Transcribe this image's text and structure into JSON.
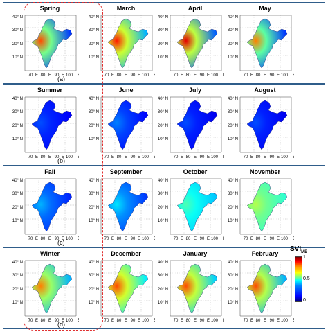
{
  "figure": {
    "panels": [
      {
        "letter": "(a)",
        "titles": [
          "Spring",
          "March",
          "April",
          "May"
        ]
      },
      {
        "letter": "(b)",
        "titles": [
          "Summer",
          "June",
          "July",
          "August"
        ]
      },
      {
        "letter": "(c)",
        "titles": [
          "Fall",
          "September",
          "October",
          "November"
        ]
      },
      {
        "letter": "(d)",
        "titles": [
          "Winter",
          "December",
          "January",
          "February"
        ]
      }
    ],
    "colorbar": {
      "title": "SVI",
      "title_sub": "ME",
      "ticks": [
        "1",
        "0.5",
        "0"
      ]
    }
  },
  "chart_data": {
    "type": "heatmap",
    "description_scale": "SVI_ME map over India, color range 0 to 1",
    "lat_ticks": [
      "40",
      "30",
      "20",
      "10"
    ],
    "lat_unit": "N",
    "lon_ticks": [
      "70",
      "80",
      "90",
      "100"
    ],
    "lon_unit": "E",
    "ticks_degree_mark": "°",
    "colormap_range": [
      0,
      1
    ],
    "maps": [
      {
        "panel": "(a)",
        "title": "Spring",
        "level": 0.18,
        "hot": 0.8
      },
      {
        "panel": "(a)",
        "title": "March",
        "level": 0.3,
        "hot": 0.85
      },
      {
        "panel": "(a)",
        "title": "April",
        "level": 0.22,
        "hot": 0.9
      },
      {
        "panel": "(a)",
        "title": "May",
        "level": 0.18,
        "hot": 0.75
      },
      {
        "panel": "(b)",
        "title": "Summer",
        "level": 0.12,
        "hot": 0.2
      },
      {
        "panel": "(b)",
        "title": "June",
        "level": 0.13,
        "hot": 0.25
      },
      {
        "panel": "(b)",
        "title": "July",
        "level": 0.11,
        "hot": 0.2
      },
      {
        "panel": "(b)",
        "title": "August",
        "level": 0.11,
        "hot": 0.2
      },
      {
        "panel": "(c)",
        "title": "Fall",
        "level": 0.16,
        "hot": 0.3
      },
      {
        "panel": "(c)",
        "title": "September",
        "level": 0.18,
        "hot": 0.35
      },
      {
        "panel": "(c)",
        "title": "October",
        "level": 0.32,
        "hot": 0.45
      },
      {
        "panel": "(c)",
        "title": "November",
        "level": 0.42,
        "hot": 0.55
      },
      {
        "panel": "(d)",
        "title": "Winter",
        "level": 0.3,
        "hot": 0.75
      },
      {
        "panel": "(d)",
        "title": "December",
        "level": 0.36,
        "hot": 0.8
      },
      {
        "panel": "(d)",
        "title": "January",
        "level": 0.33,
        "hot": 0.8
      },
      {
        "panel": "(d)",
        "title": "February",
        "level": 0.3,
        "hot": 0.8
      }
    ]
  }
}
